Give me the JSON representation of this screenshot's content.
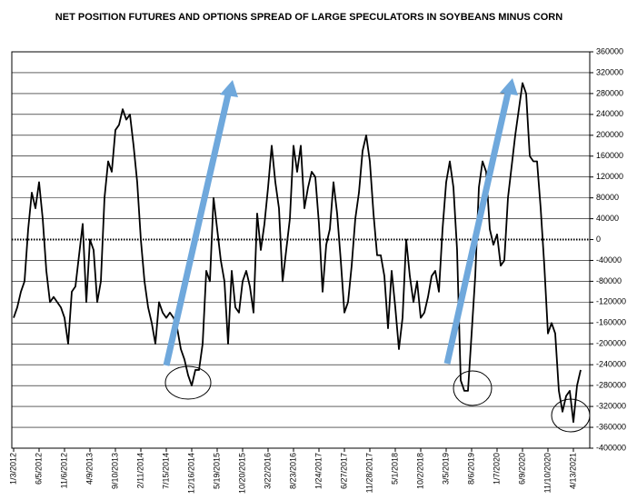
{
  "chart_data": {
    "type": "line",
    "title": "NET POSITION FUTURES AND OPTIONS SPREAD OF LARGE SPECULATORS IN SOYBEANS MINUS CORN",
    "categories": [
      "1/3/2012",
      null,
      null,
      null,
      null,
      null,
      null,
      "6/5/2012",
      null,
      null,
      null,
      null,
      null,
      null,
      "11/6/2012",
      null,
      null,
      null,
      null,
      null,
      null,
      "4/9/2013",
      null,
      null,
      null,
      null,
      null,
      null,
      "9/10/2013",
      null,
      null,
      null,
      null,
      null,
      null,
      "2/11/2014",
      null,
      null,
      null,
      null,
      null,
      null,
      "7/15/2014",
      null,
      null,
      null,
      null,
      null,
      null,
      "12/16/2014",
      null,
      null,
      null,
      null,
      null,
      null,
      "5/19/2015",
      null,
      null,
      null,
      null,
      null,
      null,
      "10/20/2015",
      null,
      null,
      null,
      null,
      null,
      null,
      "3/22/2016",
      null,
      null,
      null,
      null,
      null,
      null,
      "8/23/2016",
      null,
      null,
      null,
      null,
      null,
      null,
      "1/24/2017",
      null,
      null,
      null,
      null,
      null,
      null,
      "6/27/2017",
      null,
      null,
      null,
      null,
      null,
      null,
      "11/28/2017",
      null,
      null,
      null,
      null,
      null,
      null,
      "5/1/2018",
      null,
      null,
      null,
      null,
      null,
      null,
      "10/2/2018",
      null,
      null,
      null,
      null,
      null,
      null,
      "3/5/2019",
      null,
      null,
      null,
      null,
      null,
      null,
      "8/6/2019",
      null,
      null,
      null,
      null,
      null,
      null,
      "1/7/2020",
      null,
      null,
      null,
      null,
      null,
      null,
      "6/9/2020",
      null,
      null,
      null,
      null,
      null,
      null,
      "11/10/2020",
      null,
      null,
      null,
      null,
      null,
      null,
      "4/13/2021",
      null,
      null
    ],
    "values": [
      -150000,
      -130000,
      -100000,
      -80000,
      20000,
      90000,
      60000,
      110000,
      40000,
      -60000,
      -120000,
      -110000,
      -120000,
      -130000,
      -150000,
      -200000,
      -100000,
      -90000,
      -30000,
      30000,
      -120000,
      0,
      -20000,
      -120000,
      -80000,
      80000,
      150000,
      130000,
      210000,
      220000,
      250000,
      230000,
      240000,
      180000,
      110000,
      0,
      -80000,
      -130000,
      -160000,
      -200000,
      -120000,
      -140000,
      -150000,
      -140000,
      -150000,
      -170000,
      -210000,
      -230000,
      -260000,
      -280000,
      -250000,
      -250000,
      -200000,
      -60000,
      -80000,
      80000,
      20000,
      -40000,
      -80000,
      -200000,
      -60000,
      -130000,
      -140000,
      -80000,
      -60000,
      -90000,
      -140000,
      50000,
      -20000,
      30000,
      100000,
      180000,
      110000,
      60000,
      -80000,
      -20000,
      40000,
      180000,
      130000,
      180000,
      60000,
      100000,
      130000,
      120000,
      30000,
      -100000,
      -10000,
      20000,
      110000,
      50000,
      -40000,
      -140000,
      -120000,
      -50000,
      40000,
      90000,
      170000,
      200000,
      150000,
      50000,
      -30000,
      -30000,
      -70000,
      -170000,
      -60000,
      -130000,
      -210000,
      -150000,
      0,
      -70000,
      -120000,
      -80000,
      -150000,
      -140000,
      -110000,
      -70000,
      -60000,
      -100000,
      20000,
      110000,
      150000,
      100000,
      -20000,
      -270000,
      -290000,
      -290000,
      -180000,
      -70000,
      100000,
      150000,
      130000,
      20000,
      -10000,
      10000,
      -50000,
      -40000,
      80000,
      140000,
      200000,
      250000,
      300000,
      280000,
      160000,
      150000,
      150000,
      60000,
      -50000,
      -180000,
      -160000,
      -180000,
      -290000,
      -330000,
      -300000,
      -290000,
      -350000,
      -280000,
      -250000
    ],
    "color": "#000000",
    "ylim": [
      -400000,
      360000
    ],
    "yticks": [
      -400000,
      -360000,
      -320000,
      -280000,
      -240000,
      -200000,
      -160000,
      -120000,
      -80000,
      -40000,
      0,
      40000,
      80000,
      120000,
      160000,
      200000,
      240000,
      280000,
      320000,
      360000
    ],
    "grid": true
  }
}
